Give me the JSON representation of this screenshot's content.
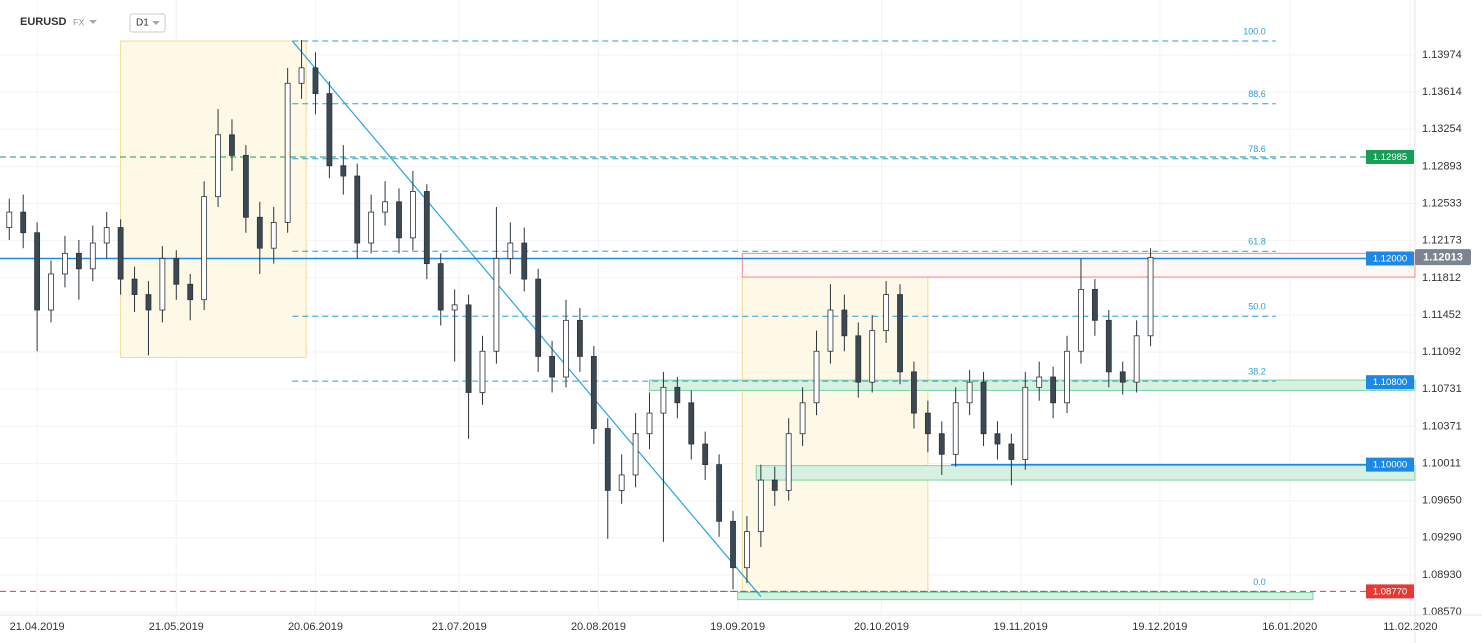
{
  "header": {
    "symbol": "EURUSD",
    "market": "FX",
    "interval": "D1"
  },
  "chart_data": {
    "type": "candlestick",
    "x": [
      "15.04.2019",
      "18.04.2019",
      "21.04.2019",
      "24.04.2019",
      "27.04.2019",
      "30.04.2019",
      "03.05.2019",
      "06.05.2019",
      "09.05.2019",
      "12.05.2019",
      "15.05.2019",
      "18.05.2019",
      "21.05.2019",
      "24.05.2019",
      "27.05.2019",
      "30.05.2019",
      "02.06.2019",
      "05.06.2019",
      "08.06.2019",
      "11.06.2019",
      "14.06.2019",
      "17.06.2019",
      "20.06.2019",
      "23.06.2019",
      "26.06.2019",
      "29.06.2019",
      "02.07.2019",
      "05.07.2019",
      "08.07.2019",
      "11.07.2019",
      "14.07.2019",
      "17.07.2019",
      "20.07.2019",
      "23.07.2019",
      "26.07.2019",
      "29.07.2019",
      "01.08.2019",
      "04.08.2019",
      "07.08.2019",
      "10.08.2019",
      "13.08.2019",
      "16.08.2019",
      "19.08.2019",
      "22.08.2019",
      "25.08.2019",
      "28.08.2019",
      "31.08.2019",
      "03.09.2019",
      "06.09.2019",
      "09.09.2019",
      "12.09.2019",
      "15.09.2019",
      "18.09.2019",
      "21.09.2019",
      "24.09.2019",
      "27.09.2019",
      "30.09.2019",
      "03.10.2019",
      "06.10.2019",
      "09.10.2019",
      "12.10.2019",
      "15.10.2019",
      "18.10.2019",
      "21.10.2019",
      "24.10.2019",
      "27.10.2019",
      "30.10.2019",
      "02.11.2019",
      "05.11.2019",
      "08.11.2019",
      "11.11.2019",
      "14.11.2019",
      "17.11.2019",
      "20.11.2019",
      "23.11.2019",
      "26.11.2019",
      "29.11.2019",
      "02.12.2019",
      "05.12.2019",
      "08.12.2019",
      "11.12.2019",
      "14.12.2019",
      "17.12.2019"
    ],
    "open": [
      1.123,
      1.1245,
      1.1225,
      1.115,
      1.1185,
      1.1205,
      1.119,
      1.1215,
      1.123,
      1.118,
      1.1165,
      1.115,
      1.12,
      1.1175,
      1.116,
      1.126,
      1.132,
      1.13,
      1.124,
      1.121,
      1.1235,
      1.137,
      1.1385,
      1.136,
      1.129,
      1.128,
      1.1215,
      1.1245,
      1.1255,
      1.122,
      1.1265,
      1.1195,
      1.115,
      1.1155,
      1.107,
      1.111,
      1.12,
      1.1215,
      1.118,
      1.1105,
      1.1085,
      1.114,
      1.1105,
      1.1035,
      1.0975,
      1.099,
      1.103,
      1.105,
      1.1075,
      1.106,
      1.102,
      1.1,
      1.0945,
      1.09,
      1.0935,
      1.0985,
      1.0975,
      1.103,
      1.106,
      1.111,
      1.115,
      1.1125,
      1.108,
      1.113,
      1.1165,
      1.109,
      1.105,
      1.103,
      1.101,
      1.106,
      1.108,
      1.103,
      1.102,
      1.1005,
      1.1075,
      1.1085,
      1.106,
      1.111,
      1.117,
      1.114,
      1.109,
      1.108,
      1.1125
    ],
    "high": [
      1.1258,
      1.1262,
      1.1235,
      1.1198,
      1.1222,
      1.1218,
      1.1232,
      1.1245,
      1.1238,
      1.1192,
      1.1178,
      1.1212,
      1.1208,
      1.1185,
      1.1275,
      1.1345,
      1.1335,
      1.131,
      1.1255,
      1.125,
      1.1385,
      1.1412,
      1.14,
      1.1372,
      1.131,
      1.1292,
      1.1262,
      1.1275,
      1.1268,
      1.1285,
      1.1272,
      1.1205,
      1.117,
      1.1165,
      1.1125,
      1.125,
      1.1235,
      1.123,
      1.119,
      1.112,
      1.116,
      1.1152,
      1.1115,
      1.1045,
      1.101,
      1.105,
      1.107,
      1.109,
      1.1085,
      1.1072,
      1.1032,
      1.101,
      1.0955,
      1.095,
      1.1,
      1.0998,
      1.1045,
      1.1075,
      1.113,
      1.1175,
      1.1165,
      1.1138,
      1.1145,
      1.1178,
      1.1175,
      1.11,
      1.1062,
      1.1042,
      1.1075,
      1.1092,
      1.109,
      1.1042,
      1.103,
      1.109,
      1.11,
      1.1095,
      1.1125,
      1.12,
      1.118,
      1.115,
      1.11,
      1.114,
      1.121
    ],
    "low": [
      1.1218,
      1.121,
      1.111,
      1.1138,
      1.1172,
      1.116,
      1.1178,
      1.12,
      1.1165,
      1.1148,
      1.1106,
      1.1138,
      1.116,
      1.114,
      1.115,
      1.125,
      1.1285,
      1.1225,
      1.1185,
      1.1195,
      1.1225,
      1.1355,
      1.134,
      1.1278,
      1.1262,
      1.12,
      1.1205,
      1.1232,
      1.1205,
      1.1208,
      1.118,
      1.1135,
      1.11,
      1.1025,
      1.1058,
      1.1098,
      1.1185,
      1.1168,
      1.109,
      1.107,
      1.1075,
      1.109,
      1.102,
      1.0928,
      1.0962,
      1.0978,
      1.1015,
      1.0925,
      1.1045,
      1.1005,
      1.0985,
      1.093,
      1.0879,
      1.0885,
      1.092,
      1.096,
      1.0965,
      1.1018,
      1.1048,
      1.1098,
      1.111,
      1.1065,
      1.107,
      1.1118,
      1.1078,
      1.1035,
      1.1012,
      1.099,
      1.0998,
      1.1048,
      1.1018,
      1.1005,
      1.098,
      1.0995,
      1.1062,
      1.1045,
      1.105,
      1.1098,
      1.1125,
      1.1075,
      1.1068,
      1.107,
      1.1115
    ],
    "close": [
      1.1245,
      1.1225,
      1.115,
      1.1185,
      1.1205,
      1.119,
      1.1215,
      1.123,
      1.118,
      1.1165,
      1.115,
      1.12,
      1.1175,
      1.116,
      1.126,
      1.132,
      1.13,
      1.124,
      1.121,
      1.1235,
      1.137,
      1.1385,
      1.136,
      1.129,
      1.128,
      1.1215,
      1.1245,
      1.1255,
      1.122,
      1.1265,
      1.1195,
      1.115,
      1.1155,
      1.107,
      1.111,
      1.12,
      1.1215,
      1.118,
      1.1105,
      1.1085,
      1.114,
      1.1105,
      1.1035,
      1.0975,
      1.099,
      1.103,
      1.105,
      1.1075,
      1.106,
      1.102,
      1.1,
      1.0945,
      1.09,
      1.0935,
      1.0985,
      1.0975,
      1.103,
      1.106,
      1.111,
      1.115,
      1.1125,
      1.108,
      1.113,
      1.1165,
      1.109,
      1.105,
      1.103,
      1.101,
      1.106,
      1.108,
      1.103,
      1.102,
      1.1005,
      1.1075,
      1.1085,
      1.106,
      1.111,
      1.117,
      1.114,
      1.109,
      1.108,
      1.1125,
      1.1201
    ],
    "up_color": "#ffffff",
    "down_color": "#3c4852",
    "wick_color": "#2b343c",
    "xlim": [
      "13.04.2019",
      "12.02.2020"
    ],
    "ylim": [
      1.08541,
      1.14508
    ],
    "xticks": [
      "21.04.2019",
      "21.05.2019",
      "20.06.2019",
      "21.07.2019",
      "20.08.2019",
      "19.09.2019",
      "20.10.2019",
      "19.11.2019",
      "19.12.2019",
      "16.01.2020",
      "11.02.2020"
    ],
    "yticks": [
      1.13974,
      1.13614,
      1.13254,
      1.12893,
      1.12533,
      1.12173,
      1.11812,
      1.11452,
      1.11092,
      1.10731,
      1.10371,
      1.10011,
      {
        "value": 1.0965,
        "label": "1.09650"
      },
      {
        "value": 1.0929,
        "label": "1.09290"
      },
      {
        "value": 1.0893,
        "label": "1.08930"
      },
      {
        "value": 1.0857,
        "label": "1.08570"
      }
    ],
    "grid": true,
    "zones": [
      {
        "start": "09.05.2019",
        "end": "18.06.2019",
        "low": 1.1104,
        "high": 1.1411,
        "fill": "#fdf9e6",
        "stroke": "#f1dc92"
      },
      {
        "start": "20.09.2019",
        "end": "30.10.2019",
        "low": 1.0872,
        "high": 1.1182,
        "fill": "#fdf9e6",
        "stroke": "#f1dc92"
      },
      {
        "start": "20.09.2019",
        "end": "12.02.2020",
        "low": 1.1182,
        "high": 1.1205,
        "fill": "#fff6f6",
        "stroke": "#f08a8a"
      },
      {
        "start": "31.08.2019",
        "end": "12.02.2020",
        "low": 1.1072,
        "high": 1.1082,
        "fill": "#d6f1e1",
        "stroke": "#7fd3a3"
      },
      {
        "start": "23.09.2019",
        "end": "12.02.2020",
        "low": 1.0985,
        "high": 1.0999,
        "fill": "#d6f1e1",
        "stroke": "#7fd3a3"
      },
      {
        "start": "19.09.2019",
        "end": "21.01.2020",
        "low": 1.0869,
        "high": 1.0876,
        "fill": "#d6f1e1",
        "stroke": "#7fd3a3"
      }
    ],
    "trendline": {
      "start": "15.06.2019",
      "end": "24.09.2019",
      "from": 1.1411,
      "to": 1.0872,
      "color": "#2aa4de"
    },
    "fibonacci": {
      "start": "15.06.2019",
      "end": "13.01.2020",
      "low": 1.0877,
      "high": 1.1411,
      "color": "#2a9fd6",
      "levels": [
        {
          "value": 100,
          "label": "100.0"
        },
        88.6,
        78.6,
        61.8,
        {
          "value": 50,
          "label": "50.0"
        },
        38.2,
        {
          "value": 0,
          "label": "0.0"
        }
      ]
    },
    "price_lines": [
      {
        "value": 1.12985,
        "label": "1.12985",
        "color": "#179e57",
        "style": "dashed"
      },
      {
        "value": 1.12,
        "label": "1.12000",
        "color": "#1e88e5",
        "style": "solid"
      },
      {
        "value": 1.108,
        "label": "1.10800",
        "color": "#1e88e5",
        "style": "none"
      },
      {
        "value": 1.1,
        "label": "1.10000",
        "color": "#1e88e5",
        "style": "solid",
        "start": "04.11.2019"
      },
      {
        "value": 1.0877,
        "label": "1.08770",
        "color": "#e53935",
        "style": "dashed"
      }
    ],
    "last_price": {
      "value": 1.12013,
      "label": "1.12013",
      "color": "#7b8590"
    }
  }
}
